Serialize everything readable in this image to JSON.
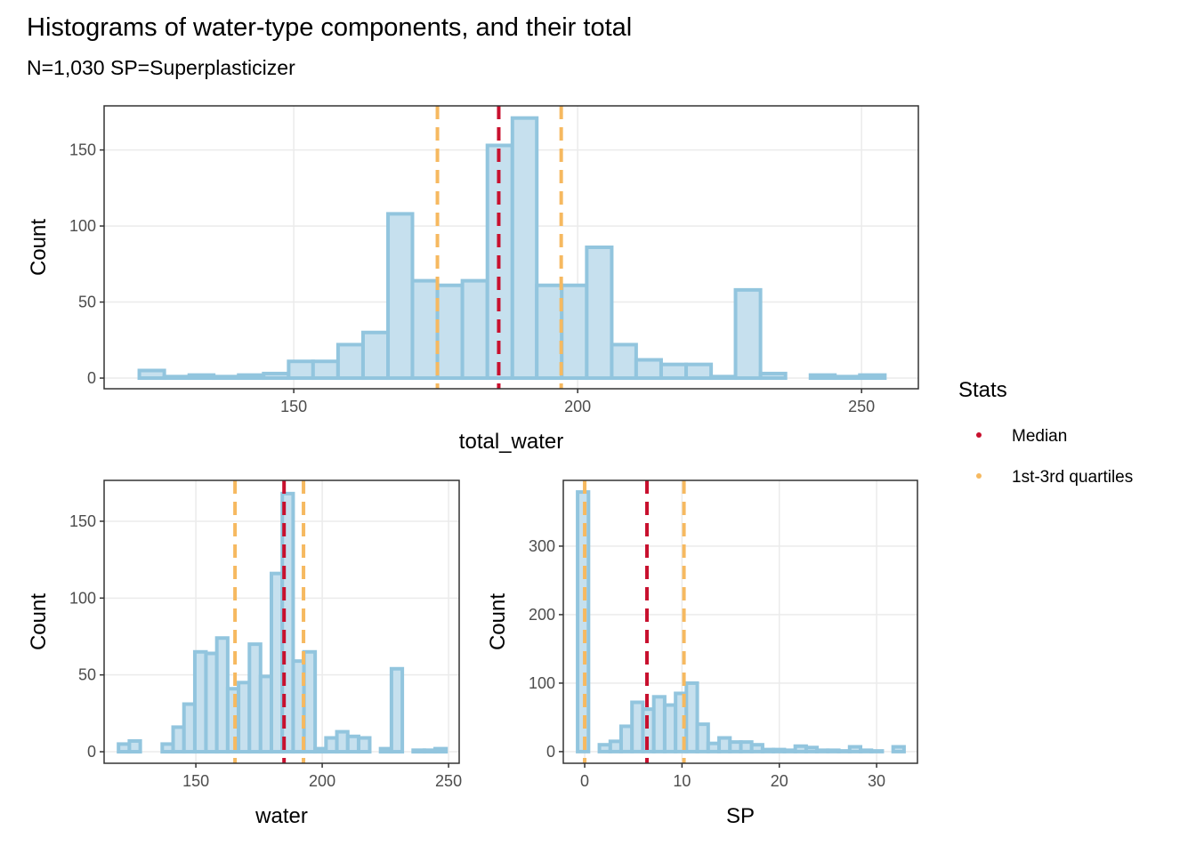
{
  "title": "Histograms of water-type components, and their total",
  "subtitle": "N=1,030   SP=Superplasticizer",
  "legend": {
    "title": "Stats",
    "items": [
      {
        "name": "Median",
        "color": "#c8102e"
      },
      {
        "name": "1st-3rd quartiles",
        "color": "#f6b960"
      }
    ]
  },
  "chart_data": [
    {
      "type": "histogram",
      "xlabel": "total_water",
      "ylabel": "Count",
      "fill": "#c6e0ee",
      "color": "#92c5de",
      "bins": [
        122.8,
        127.2,
        131.6,
        135.9,
        140.3,
        144.7,
        149.1,
        153.4,
        157.8,
        162.2,
        166.6,
        170.9,
        175.3,
        179.7,
        184.1,
        188.5,
        192.8,
        197.2,
        201.6,
        206.0,
        210.3,
        214.7,
        219.1,
        223.5,
        227.8,
        232.2,
        236.6,
        241.0,
        245.3,
        249.7,
        254.1
      ],
      "values": [
        5,
        1,
        2,
        1,
        2,
        3,
        11,
        11,
        22,
        30,
        108,
        64,
        61,
        64,
        153,
        171,
        61,
        61,
        86,
        22,
        12,
        9,
        9,
        1,
        58,
        3,
        0,
        2,
        1,
        2
      ],
      "median": 186.1,
      "quartiles": [
        175.3,
        197.1
      ],
      "xlim": [
        116.6,
        260
      ],
      "ylim": [
        -7,
        179
      ],
      "xticks": [
        150,
        200,
        250
      ],
      "yticks": [
        0,
        50,
        100,
        150
      ],
      "grid": true
    },
    {
      "type": "histogram",
      "xlabel": "water",
      "ylabel": "Count",
      "fill": "#c6e0ee",
      "color": "#92c5de",
      "bins": [
        119.4,
        123.7,
        128.0,
        132.4,
        136.7,
        141.0,
        145.3,
        149.6,
        154.0,
        158.3,
        162.6,
        166.9,
        171.2,
        175.6,
        179.9,
        184.2,
        188.5,
        192.8,
        197.2,
        201.5,
        205.8,
        210.1,
        214.4,
        218.8,
        223.1,
        227.4,
        231.7,
        236.0,
        240.4,
        244.7,
        249.0
      ],
      "values": [
        5,
        7,
        0,
        0,
        5,
        16,
        31,
        65,
        64,
        74,
        41,
        45,
        70,
        49,
        116,
        168,
        59,
        65,
        2,
        9,
        13,
        10,
        9,
        0,
        2,
        54,
        0,
        1,
        1,
        2
      ],
      "median": 184.9,
      "quartiles": [
        165.5,
        192.6
      ],
      "xlim": [
        113.7,
        254.2
      ],
      "ylim": [
        -7.5,
        176.6
      ],
      "xticks": [
        150,
        200,
        250
      ],
      "yticks": [
        0,
        50,
        100,
        150
      ],
      "grid": true
    },
    {
      "type": "histogram",
      "xlabel": "SP",
      "ylabel": "Count",
      "fill": "#c6e0ee",
      "color": "#92c5de",
      "bins": [
        -0.73,
        0.39,
        1.51,
        2.63,
        3.74,
        4.86,
        5.98,
        7.1,
        8.22,
        9.34,
        10.45,
        11.57,
        12.69,
        13.81,
        14.93,
        16.05,
        17.16,
        18.28,
        19.4,
        20.52,
        21.64,
        22.76,
        23.87,
        24.99,
        26.11,
        27.23,
        28.35,
        29.47,
        30.58,
        31.7,
        32.82
      ],
      "values": [
        379,
        0,
        10,
        15,
        37,
        72,
        62,
        80,
        68,
        85,
        100,
        40,
        12,
        20,
        14,
        14,
        10,
        3,
        3,
        2,
        8,
        6,
        2,
        2,
        1,
        7,
        2,
        1,
        0,
        7
      ],
      "median": 6.4,
      "quartiles": [
        0,
        10.2
      ],
      "xlim": [
        -2.2,
        34.2
      ],
      "ylim": [
        -17,
        396
      ],
      "xticks": [
        0,
        10,
        20,
        30
      ],
      "yticks": [
        0,
        100,
        200,
        300
      ],
      "grid": true
    }
  ]
}
